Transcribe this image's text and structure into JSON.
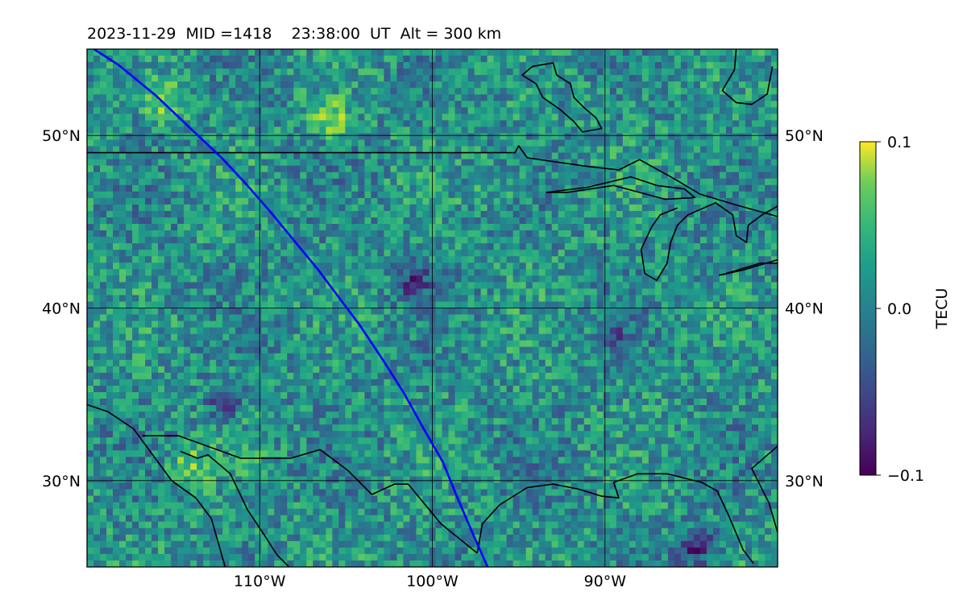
{
  "chart_data": {
    "type": "heatmap",
    "title": "2023-11-29  MID =1418    23:38:00  UT  Alt = 300 km",
    "map": {
      "lon_range": [
        -120,
        -80
      ],
      "lat_range": [
        25,
        55
      ],
      "lon_ticks": [
        -110,
        -100,
        -90
      ],
      "lon_tick_labels": [
        "110°W",
        "100°W",
        "90°W"
      ],
      "lat_ticks": [
        30,
        40,
        50
      ],
      "lat_tick_labels": [
        "30°N",
        "40°N",
        "50°N"
      ],
      "grid": true,
      "colormap": "viridis"
    },
    "colorbar": {
      "label": "TECU",
      "range": [
        -0.1,
        0.1
      ],
      "ticks": [
        0.1,
        0.0,
        -0.1
      ],
      "tick_labels": [
        "0.1",
        "0.0",
        "−0.1"
      ],
      "position": "right"
    },
    "track": {
      "color": "#0000ff",
      "points": [
        [
          -119.6,
          55.0
        ],
        [
          -118.2,
          54.1
        ],
        [
          -116.0,
          52.3
        ],
        [
          -114.0,
          50.4
        ],
        [
          -112.2,
          48.7
        ],
        [
          -110.8,
          47.2
        ],
        [
          -109.4,
          45.6
        ],
        [
          -108.0,
          43.9
        ],
        [
          -106.6,
          42.2
        ],
        [
          -105.4,
          40.6
        ],
        [
          -104.2,
          39.0
        ],
        [
          -102.8,
          36.9
        ],
        [
          -101.6,
          35.0
        ],
        [
          -100.5,
          33.0
        ],
        [
          -99.4,
          31.1
        ],
        [
          -98.5,
          28.9
        ],
        [
          -97.6,
          26.8
        ],
        [
          -96.8,
          25.0
        ]
      ]
    },
    "coastlines": [
      [
        [
          -120,
          49.0
        ],
        [
          -95.2,
          49.0
        ],
        [
          -95.0,
          49.4
        ],
        [
          -94.5,
          48.7
        ],
        [
          -91.0,
          48.2
        ],
        [
          -89.2,
          48.0
        ],
        [
          -88.0,
          48.6
        ],
        [
          -86.0,
          47.5
        ],
        [
          -84.5,
          46.6
        ],
        [
          -82.5,
          46.0
        ],
        [
          -80,
          45.3
        ]
      ],
      [
        [
          -93.4,
          46.7
        ],
        [
          -91.0,
          47.0
        ],
        [
          -88.5,
          47.6
        ],
        [
          -87.0,
          47.1
        ],
        [
          -85.4,
          46.9
        ],
        [
          -84.8,
          46.4
        ],
        [
          -86.5,
          46.3
        ],
        [
          -89.5,
          47.1
        ],
        [
          -92.2,
          46.7
        ],
        [
          -93.4,
          46.7
        ]
      ],
      [
        [
          -85.8,
          45.8
        ],
        [
          -86.8,
          45.4
        ],
        [
          -87.3,
          44.7
        ],
        [
          -87.9,
          43.4
        ],
        [
          -87.7,
          42.0
        ],
        [
          -87.0,
          41.6
        ],
        [
          -86.4,
          42.6
        ],
        [
          -86.2,
          43.8
        ],
        [
          -85.8,
          44.8
        ],
        [
          -85.2,
          45.4
        ],
        [
          -84.5,
          45.7
        ],
        [
          -83.6,
          46.1
        ],
        [
          -82.6,
          45.4
        ],
        [
          -82.4,
          44.2
        ],
        [
          -81.8,
          43.8
        ],
        [
          -81.7,
          44.8
        ],
        [
          -80.9,
          45.4
        ],
        [
          -80.0,
          45.9
        ]
      ],
      [
        [
          -83.4,
          41.9
        ],
        [
          -82.0,
          42.2
        ],
        [
          -80.0,
          42.8
        ]
      ],
      [
        [
          -83.0,
          42.0
        ],
        [
          -81.0,
          42.6
        ],
        [
          -80.0,
          42.6
        ]
      ],
      [
        [
          -80.3,
          54.0
        ],
        [
          -80.6,
          52.4
        ],
        [
          -81.5,
          51.8
        ],
        [
          -82.4,
          51.9
        ],
        [
          -83.2,
          52.6
        ],
        [
          -82.5,
          53.8
        ],
        [
          -82.4,
          55.0
        ]
      ],
      [
        [
          -94.2,
          54.0
        ],
        [
          -93.0,
          54.2
        ],
        [
          -92.8,
          53.5
        ],
        [
          -92.0,
          53.0
        ],
        [
          -91.8,
          52.2
        ],
        [
          -91.2,
          51.6
        ],
        [
          -90.5,
          51.0
        ],
        [
          -90.2,
          50.4
        ],
        [
          -91.3,
          50.2
        ],
        [
          -91.8,
          50.8
        ],
        [
          -92.6,
          51.5
        ],
        [
          -93.6,
          52.2
        ],
        [
          -94.0,
          53.0
        ],
        [
          -94.8,
          53.5
        ],
        [
          -94.2,
          54.0
        ]
      ],
      [
        [
          -120,
          34.4
        ],
        [
          -118.8,
          34.0
        ],
        [
          -117.3,
          33.0
        ],
        [
          -116.2,
          31.5
        ],
        [
          -115.1,
          30.0
        ],
        [
          -113.7,
          29.0
        ],
        [
          -112.8,
          27.8
        ],
        [
          -112.0,
          25.0
        ]
      ],
      [
        [
          -114.6,
          31.7
        ],
        [
          -113.6,
          31.3
        ],
        [
          -113.0,
          31.5
        ],
        [
          -111.7,
          30.4
        ],
        [
          -110.7,
          28.3
        ],
        [
          -109.7,
          26.8
        ],
        [
          -109.0,
          25.7
        ],
        [
          -108.3,
          25.0
        ]
      ],
      [
        [
          -116.8,
          32.6
        ],
        [
          -114.7,
          32.6
        ],
        [
          -111.1,
          31.3
        ],
        [
          -108.2,
          31.3
        ],
        [
          -106.5,
          31.8
        ],
        [
          -104.9,
          30.6
        ],
        [
          -103.5,
          29.2
        ],
        [
          -102.2,
          29.8
        ],
        [
          -101.4,
          29.8
        ],
        [
          -99.5,
          27.5
        ],
        [
          -97.4,
          25.8
        ]
      ],
      [
        [
          -97.4,
          25.8
        ],
        [
          -97.1,
          27.5
        ],
        [
          -96.1,
          28.6
        ],
        [
          -94.5,
          29.6
        ],
        [
          -93.0,
          29.8
        ],
        [
          -91.5,
          29.5
        ],
        [
          -90.2,
          29.1
        ],
        [
          -89.2,
          29.0
        ],
        [
          -89.5,
          29.9
        ],
        [
          -88.1,
          30.4
        ],
        [
          -86.4,
          30.4
        ],
        [
          -84.4,
          29.9
        ],
        [
          -83.5,
          29.4
        ],
        [
          -82.8,
          27.9
        ],
        [
          -82.0,
          26.0
        ],
        [
          -81.4,
          25.2
        ]
      ],
      [
        [
          -80.0,
          27.0
        ],
        [
          -80.5,
          28.7
        ],
        [
          -81.5,
          30.7
        ],
        [
          -80.0,
          32.0
        ]
      ]
    ]
  }
}
